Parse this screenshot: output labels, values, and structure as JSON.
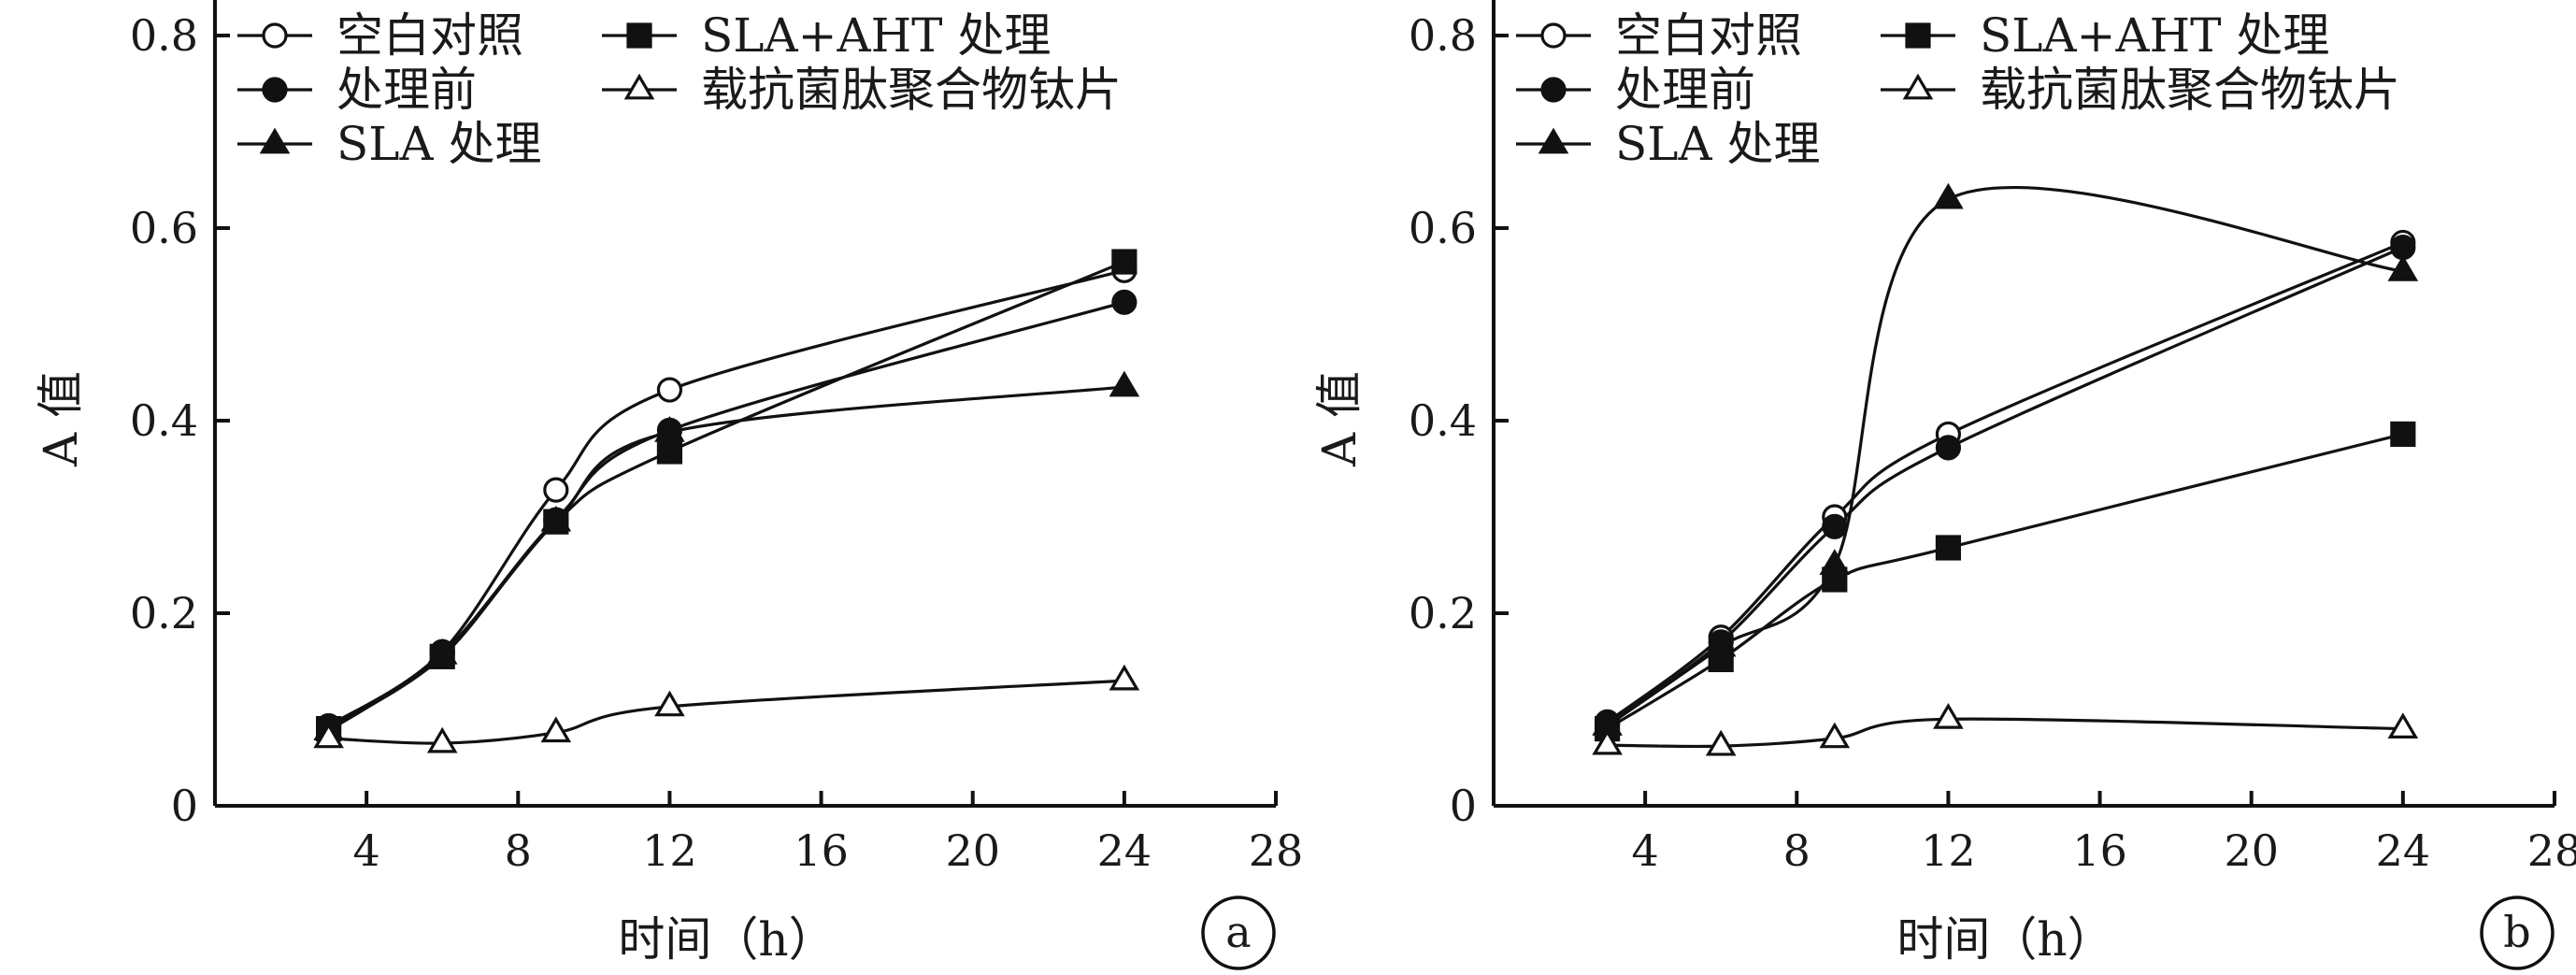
{
  "chart_data": [
    {
      "type": "line",
      "panel_label": "a",
      "xlabel": "时间（h）",
      "ylabel": "A 值",
      "xlim": [
        0,
        28
      ],
      "ylim": [
        0,
        0.8
      ],
      "x_ticks": [
        "4",
        "8",
        "12",
        "16",
        "20",
        "24",
        "28"
      ],
      "y_ticks": [
        "0",
        "0.2",
        "0.4",
        "0.6",
        "0.8"
      ],
      "x": [
        3,
        6,
        9,
        12,
        24
      ],
      "legend_position": "top-left",
      "series": [
        {
          "name": "空白对照",
          "marker": "circle-open",
          "values": [
            0.083,
            0.16,
            0.328,
            0.432,
            0.556
          ]
        },
        {
          "name": "处理前",
          "marker": "circle-filled",
          "values": [
            0.08,
            0.158,
            0.297,
            0.39,
            0.523
          ]
        },
        {
          "name": "SLA 处理",
          "marker": "triangle-filled",
          "values": [
            0.078,
            0.157,
            0.295,
            0.388,
            0.435
          ]
        },
        {
          "name": "SLA+AHT 处理",
          "marker": "square-filled",
          "values": [
            0.08,
            0.155,
            0.295,
            0.368,
            0.565
          ]
        },
        {
          "name": "载抗菌肽聚合物钛片",
          "marker": "triangle-open",
          "values": [
            0.07,
            0.065,
            0.076,
            0.103,
            0.13
          ]
        }
      ]
    },
    {
      "type": "line",
      "panel_label": "b",
      "xlabel": "时间（h）",
      "ylabel": "A 值",
      "xlim": [
        0,
        28
      ],
      "ylim": [
        0,
        0.8
      ],
      "x_ticks": [
        "4",
        "8",
        "12",
        "16",
        "20",
        "24",
        "28"
      ],
      "y_ticks": [
        "0",
        "0.2",
        "0.4",
        "0.6",
        "0.8"
      ],
      "x": [
        3,
        6,
        9,
        12,
        24
      ],
      "legend_position": "top-left",
      "series": [
        {
          "name": "空白对照",
          "marker": "circle-open",
          "values": [
            0.087,
            0.175,
            0.3,
            0.386,
            0.585
          ]
        },
        {
          "name": "处理前",
          "marker": "circle-filled",
          "values": [
            0.085,
            0.17,
            0.29,
            0.372,
            0.58
          ]
        },
        {
          "name": "SLA 处理",
          "marker": "triangle-filled",
          "values": [
            0.083,
            0.165,
            0.25,
            0.63,
            0.555
          ]
        },
        {
          "name": "SLA+AHT 处理",
          "marker": "square-filled",
          "values": [
            0.08,
            0.152,
            0.235,
            0.268,
            0.386
          ]
        },
        {
          "name": "载抗菌肽聚合物钛片",
          "marker": "triangle-open",
          "values": [
            0.063,
            0.062,
            0.07,
            0.09,
            0.08
          ]
        }
      ]
    }
  ]
}
